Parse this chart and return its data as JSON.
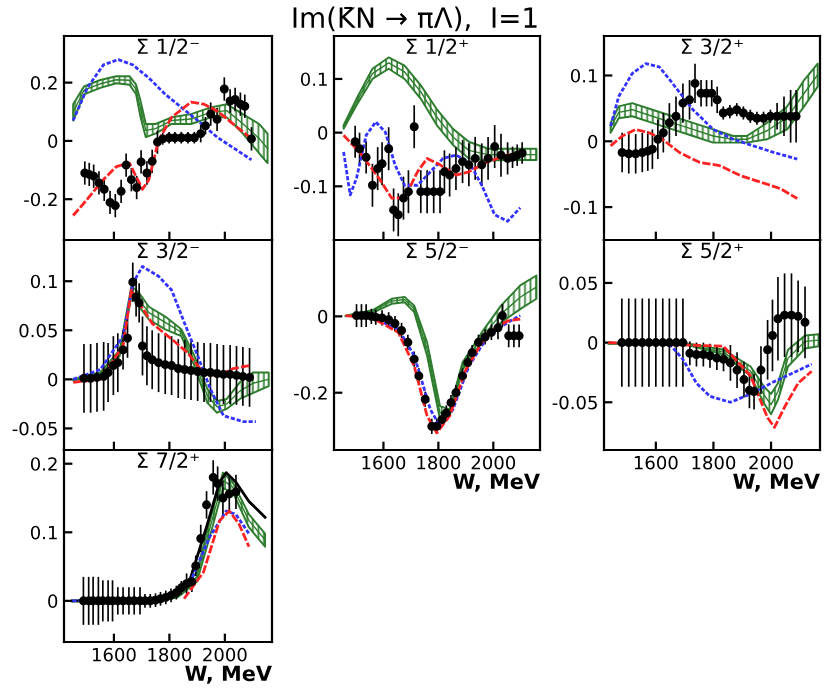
{
  "chart_data": [
    {
      "type": "other",
      "title": "Im(K̄N → πΛ),  I=1"
    },
    {
      "type": "line",
      "title": "Σ 1/2⁻",
      "xlim": [
        1420,
        2170
      ],
      "ylim": [
        -0.34,
        0.36
      ],
      "xticks": [
        1600,
        1800,
        2000
      ],
      "yticks": [
        -0.2,
        0,
        0.2
      ],
      "tick_labels": "y",
      "series": [
        {
          "type": "line",
          "color": "#2e7d2e",
          "x": [
            1453,
            1492,
            1551,
            1609,
            1656,
            1680,
            1696,
            1715,
            1750,
            1808,
            1878,
            1949,
            2007,
            2065,
            2124,
            2154
          ],
          "values": [
            0.098,
            0.174,
            0.196,
            0.21,
            0.208,
            0.177,
            0.109,
            0.036,
            0.042,
            0.07,
            0.075,
            0.098,
            0.104,
            0.059,
            0.008,
            -0.026
          ],
          "lower": [
            0.07,
            0.16,
            0.182,
            0.198,
            0.193,
            0.16,
            0.081,
            0.013,
            0.025,
            0.058,
            0.058,
            0.081,
            0.081,
            0.025,
            -0.043,
            -0.076
          ],
          "upper": [
            0.126,
            0.187,
            0.209,
            0.222,
            0.222,
            0.193,
            0.137,
            0.058,
            0.058,
            0.081,
            0.092,
            0.115,
            0.126,
            0.092,
            0.058,
            0.025
          ]
        },
        {
          "type": "line",
          "color": "#3333ff",
          "line_style": "dotted",
          "x": [
            1453,
            1504,
            1562,
            1616,
            1668,
            1726,
            1785,
            1843,
            1902,
            1972,
            2042,
            2096
          ],
          "values": [
            0.07,
            0.182,
            0.261,
            0.279,
            0.261,
            0.216,
            0.16,
            0.115,
            0.07,
            0.013,
            -0.031,
            -0.065
          ]
        },
        {
          "type": "line",
          "color": "#ff2222",
          "line_style": "dashed",
          "x": [
            1453,
            1504,
            1562,
            1609,
            1656,
            1703,
            1726,
            1761,
            1808,
            1878,
            1925,
            1972,
            2030,
            2089
          ],
          "values": [
            -0.256,
            -0.2,
            -0.133,
            -0.088,
            -0.076,
            -0.166,
            -0.133,
            0.002,
            0.081,
            0.133,
            0.126,
            0.103,
            0.058,
            0.013
          ]
        },
        {
          "type": "scatter",
          "color": "#000000",
          "marker": "circle",
          "x": [
            1495,
            1511,
            1527,
            1546,
            1565,
            1586,
            1605,
            1626,
            1644,
            1663,
            1682,
            1698,
            1719,
            1738,
            1757,
            1776,
            1799,
            1820,
            1843,
            1867,
            1890,
            1913,
            1930,
            1949,
            1972,
            1998,
            2019,
            2037,
            2056,
            2072,
            2096
          ],
          "values": [
            -0.11,
            -0.115,
            -0.121,
            -0.144,
            -0.166,
            -0.211,
            -0.222,
            -0.173,
            -0.083,
            -0.133,
            -0.16,
            -0.072,
            -0.11,
            -0.07,
            -0.004,
            0.007,
            0.011,
            0.011,
            0.011,
            0.011,
            0.011,
            0.025,
            0.052,
            0.092,
            0.074,
            0.178,
            0.137,
            0.142,
            0.126,
            0.119,
            0.007
          ],
          "errors": [
            0.04,
            0.04,
            0.04,
            0.04,
            0.04,
            0.04,
            0.04,
            0.04,
            0.04,
            0.04,
            0.04,
            0.04,
            0.04,
            0.04,
            0.04,
            0.02,
            0.02,
            0.02,
            0.02,
            0.02,
            0.02,
            0.03,
            0.03,
            0.04,
            0.04,
            0.04,
            0.04,
            0.04,
            0.04,
            0.04,
            0.04
          ]
        }
      ]
    },
    {
      "type": "line",
      "title": "Σ 1/2⁺",
      "xlim": [
        1420,
        2170
      ],
      "ylim": [
        -0.2,
        0.18
      ],
      "xticks": [
        1600,
        1800,
        2000
      ],
      "yticks": [
        -0.1,
        0,
        0.1
      ],
      "tick_labels": "y",
      "series": [
        {
          "type": "line",
          "color": "#2e7d2e",
          "x": [
            1455,
            1502,
            1560,
            1619,
            1677,
            1736,
            1794,
            1853,
            1911,
            1981,
            2052,
            2122,
            2157
          ],
          "values": [
            0.011,
            0.057,
            0.11,
            0.13,
            0.113,
            0.076,
            0.029,
            -0.008,
            -0.033,
            -0.041,
            -0.041,
            -0.041,
            -0.041
          ],
          "lower": [
            0.007,
            0.051,
            0.1,
            0.119,
            0.1,
            0.063,
            0.014,
            -0.023,
            -0.048,
            -0.052,
            -0.051,
            -0.051,
            -0.051
          ],
          "upper": [
            0.014,
            0.063,
            0.119,
            0.14,
            0.125,
            0.088,
            0.044,
            0.007,
            -0.017,
            -0.03,
            -0.03,
            -0.03,
            -0.03
          ]
        },
        {
          "type": "line",
          "color": "#3333ff",
          "line_style": "dotted",
          "x": [
            1455,
            1479,
            1502,
            1537,
            1572,
            1607,
            1642,
            1677,
            1724,
            1771,
            1817,
            1864,
            1911,
            1958,
            2005,
            2052,
            2098
          ],
          "values": [
            -0.036,
            -0.116,
            -0.085,
            -0.005,
            0.02,
            0.001,
            -0.06,
            -0.098,
            -0.098,
            -0.073,
            -0.048,
            -0.042,
            -0.054,
            -0.098,
            -0.153,
            -0.165,
            -0.14
          ]
        },
        {
          "type": "line",
          "color": "#ff2222",
          "line_style": "dashed",
          "x": [
            1455,
            1513,
            1584,
            1630,
            1677,
            1724,
            1759,
            1806,
            1864,
            1911,
            1981,
            2052,
            2098
          ],
          "values": [
            -0.005,
            -0.036,
            -0.085,
            -0.122,
            -0.122,
            -0.073,
            -0.048,
            -0.06,
            -0.079,
            -0.073,
            -0.054,
            -0.042,
            -0.038
          ]
        },
        {
          "type": "scatter",
          "color": "#000000",
          "marker": "circle",
          "x": [
            1497,
            1513,
            1537,
            1560,
            1579,
            1595,
            1619,
            1637,
            1654,
            1673,
            1691,
            1712,
            1736,
            1759,
            1783,
            1806,
            1822,
            1841,
            1864,
            1888,
            1911,
            1934,
            1958,
            1981,
            2005,
            2028,
            2052,
            2070,
            2087,
            2105
          ],
          "values": [
            -0.017,
            -0.03,
            -0.046,
            -0.098,
            -0.067,
            -0.058,
            -0.03,
            -0.144,
            -0.153,
            -0.122,
            -0.11,
            0.011,
            -0.11,
            -0.11,
            -0.11,
            -0.11,
            -0.073,
            -0.079,
            -0.067,
            -0.054,
            -0.06,
            -0.048,
            -0.06,
            -0.048,
            -0.026,
            -0.042,
            -0.048,
            -0.046,
            -0.042,
            -0.038
          ],
          "errors": [
            0.03,
            0.03,
            0.03,
            0.04,
            0.04,
            0.04,
            0.04,
            0.04,
            0.04,
            0.04,
            0.04,
            0.04,
            0.04,
            0.04,
            0.04,
            0.04,
            0.04,
            0.04,
            0.04,
            0.04,
            0.04,
            0.04,
            0.04,
            0.04,
            0.04,
            0.04,
            0.03,
            0.02,
            0.02,
            0.02
          ]
        }
      ]
    },
    {
      "type": "line",
      "title": "Σ 3/2⁺",
      "xlim": [
        1420,
        2170
      ],
      "ylim": [
        -0.15,
        0.16
      ],
      "xticks": [
        1600,
        1800,
        2000
      ],
      "yticks": [
        -0.1,
        0,
        0.1
      ],
      "tick_labels": "y",
      "series": [
        {
          "type": "line",
          "color": "#2e7d2e",
          "x": [
            1443,
            1471,
            1518,
            1588,
            1658,
            1729,
            1799,
            1869,
            1916,
            1986,
            2056,
            2115,
            2162
          ],
          "values": [
            0.021,
            0.044,
            0.048,
            0.038,
            0.028,
            0.018,
            0.008,
            0.003,
            0.003,
            0.016,
            0.036,
            0.073,
            0.101
          ],
          "lower": [
            0.013,
            0.035,
            0.038,
            0.028,
            0.018,
            0.008,
            -0.002,
            -0.002,
            -0.002,
            0.003,
            0.018,
            0.053,
            0.083
          ],
          "upper": [
            0.028,
            0.053,
            0.058,
            0.048,
            0.038,
            0.028,
            0.018,
            0.008,
            0.008,
            0.028,
            0.053,
            0.093,
            0.118
          ]
        },
        {
          "type": "line",
          "color": "#3333ff",
          "line_style": "dotted",
          "x": [
            1443,
            1471,
            1518,
            1565,
            1612,
            1658,
            1729,
            1799,
            1869,
            1939,
            2010,
            2091
          ],
          "values": [
            0.023,
            0.068,
            0.103,
            0.118,
            0.113,
            0.088,
            0.048,
            0.018,
            0.003,
            -0.007,
            -0.017,
            -0.027
          ]
        },
        {
          "type": "line",
          "color": "#ff2222",
          "line_style": "dashed",
          "x": [
            1443,
            1483,
            1530,
            1577,
            1623,
            1682,
            1752,
            1822,
            1893,
            1963,
            2033,
            2091
          ],
          "values": [
            -0.007,
            0.008,
            0.018,
            0.013,
            0.003,
            -0.017,
            -0.032,
            -0.037,
            -0.052,
            -0.062,
            -0.072,
            -0.087
          ]
        },
        {
          "type": "scatter",
          "color": "#000000",
          "marker": "circle",
          "x": [
            1483,
            1506,
            1530,
            1553,
            1572,
            1588,
            1607,
            1626,
            1647,
            1670,
            1694,
            1717,
            1736,
            1757,
            1776,
            1794,
            1813,
            1834,
            1857,
            1881,
            1904,
            1928,
            1951,
            1974,
            1998,
            2021,
            2045,
            2068,
            2087
          ],
          "values": [
            -0.017,
            -0.019,
            -0.019,
            -0.017,
            -0.015,
            -0.012,
            0.003,
            0.013,
            0.028,
            0.038,
            0.058,
            0.063,
            0.088,
            0.073,
            0.073,
            0.073,
            0.063,
            0.043,
            0.045,
            0.048,
            0.043,
            0.038,
            0.035,
            0.035,
            0.038,
            0.038,
            0.038,
            0.038,
            0.038
          ],
          "errors": [
            0.03,
            0.03,
            0.03,
            0.03,
            0.03,
            0.03,
            0.03,
            0.03,
            0.03,
            0.03,
            0.03,
            0.03,
            0.03,
            0.02,
            0.02,
            0.02,
            0.02,
            0.01,
            0.01,
            0.01,
            0.01,
            0.01,
            0.01,
            0.01,
            0.01,
            0.02,
            0.03,
            0.04,
            0.04
          ]
        }
      ]
    },
    {
      "type": "line",
      "title": "Σ 3/2⁻",
      "xlim": [
        1420,
        2170
      ],
      "ylim": [
        -0.072,
        0.142
      ],
      "xticks": [
        1600,
        1800,
        2000
      ],
      "yticks": [
        -0.05,
        0,
        0.05,
        0.1
      ],
      "tick_labels": "y",
      "series": [
        {
          "type": "line",
          "color": "#2e7d2e",
          "x": [
            1453,
            1551,
            1621,
            1663,
            1691,
            1726,
            1785,
            1843,
            1890,
            1937,
            1972,
            2007,
            2054,
            2101,
            2158
          ],
          "values": [
            -0.001,
            0.005,
            0.027,
            0.09,
            0.081,
            0.068,
            0.058,
            0.048,
            0.019,
            -0.017,
            -0.028,
            -0.025,
            -0.012,
            -0.004,
            0
          ],
          "lower": [
            -0.001,
            0.003,
            0.024,
            0.084,
            0.074,
            0.061,
            0.051,
            0.044,
            0.014,
            -0.024,
            -0.034,
            -0.03,
            -0.02,
            -0.014,
            -0.007
          ],
          "upper": [
            0,
            0.007,
            0.03,
            0.095,
            0.088,
            0.074,
            0.064,
            0.051,
            0.024,
            -0.01,
            -0.022,
            -0.02,
            -0.003,
            0.007,
            0.007
          ]
        },
        {
          "type": "line",
          "color": "#3333ff",
          "line_style": "dotted",
          "x": [
            1453,
            1551,
            1633,
            1668,
            1703,
            1761,
            1808,
            1855,
            1902,
            1948,
            1995,
            2065,
            2112
          ],
          "values": [
            0,
            0.01,
            0.044,
            0.098,
            0.115,
            0.105,
            0.091,
            0.057,
            0.024,
            -0.01,
            -0.037,
            -0.043,
            -0.043
          ]
        },
        {
          "type": "line",
          "color": "#ff2222",
          "line_style": "dashed",
          "x": [
            1453,
            1551,
            1633,
            1663,
            1691,
            1738,
            1808,
            1866,
            1913,
            1972,
            2030,
            2089
          ],
          "values": [
            -0.003,
            0,
            0.034,
            0.091,
            0.078,
            0.057,
            0.041,
            0.027,
            0.01,
            0.003,
            0.011,
            0.014
          ]
        },
        {
          "type": "scatter",
          "color": "#000000",
          "marker": "circle",
          "x": [
            1492,
            1516,
            1539,
            1563,
            1579,
            1598,
            1614,
            1633,
            1649,
            1668,
            1680,
            1691,
            1703,
            1719,
            1738,
            1761,
            1785,
            1808,
            1832,
            1855,
            1878,
            1902,
            1925,
            1948,
            1972,
            1995,
            2019,
            2042,
            2065,
            2089
          ],
          "values": [
            0.001,
            0.001,
            0.002,
            0.003,
            0.007,
            0.014,
            0.017,
            0.03,
            0.042,
            0.099,
            0.084,
            0.078,
            0.034,
            0.024,
            0.02,
            0.017,
            0.015,
            0.014,
            0.011,
            0.01,
            0.009,
            0.008,
            0.007,
            0.007,
            0.006,
            0.005,
            0.005,
            0.004,
            0.003,
            0.002
          ],
          "errors": [
            0.035,
            0.035,
            0.035,
            0.035,
            0.03,
            0.03,
            0.03,
            0.02,
            0.02,
            0.02,
            0.02,
            0.02,
            0.03,
            0.03,
            0.03,
            0.03,
            0.03,
            0.03,
            0.03,
            0.03,
            0.03,
            0.03,
            0.03,
            0.03,
            0.03,
            0.03,
            0.03,
            0.03,
            0.03,
            0.03
          ]
        }
      ]
    },
    {
      "type": "line",
      "title": "Σ 5/2⁻",
      "xlim": [
        1420,
        2170
      ],
      "ylim": [
        -0.35,
        0.2
      ],
      "xticks": [
        1600,
        1800,
        2000
      ],
      "yticks": [
        -0.2,
        0
      ],
      "xlabel": "W, MeV",
      "series": [
        {
          "type": "line",
          "color": "#2e7d2e",
          "x": [
            1462,
            1560,
            1630,
            1677,
            1712,
            1759,
            1806,
            1841,
            1888,
            1958,
            2028,
            2098,
            2157
          ],
          "values": [
            0.001,
            0.013,
            0.04,
            0.044,
            0.02,
            -0.086,
            -0.253,
            -0.253,
            -0.13,
            -0.055,
            0.006,
            0.05,
            0.077
          ],
          "lower": [
            0,
            0.009,
            0.033,
            0.037,
            0.011,
            -0.103,
            -0.27,
            -0.261,
            -0.139,
            -0.068,
            -0.016,
            0.019,
            0.046
          ],
          "upper": [
            0.002,
            0.016,
            0.046,
            0.051,
            0.028,
            -0.068,
            -0.235,
            -0.244,
            -0.121,
            -0.042,
            0.028,
            0.081,
            0.107
          ]
        },
        {
          "type": "line",
          "color": "#3333ff",
          "line_style": "dotted",
          "x": [
            1560,
            1654,
            1712,
            1771,
            1806,
            1853,
            1911,
            1981,
            2052,
            2098
          ],
          "values": [
            -0.004,
            -0.033,
            -0.103,
            -0.244,
            -0.288,
            -0.244,
            -0.13,
            -0.051,
            -0.016,
            0.002
          ]
        },
        {
          "type": "line",
          "color": "#ff2222",
          "line_style": "dashed",
          "x": [
            1462,
            1560,
            1654,
            1712,
            1759,
            1794,
            1841,
            1900,
            1981,
            2052,
            2098
          ],
          "values": [
            0.002,
            -0.004,
            -0.042,
            -0.13,
            -0.261,
            -0.305,
            -0.261,
            -0.139,
            -0.042,
            -0.012,
            -0.007
          ]
        },
        {
          "type": "scatter",
          "color": "#000000",
          "marker": "circle",
          "x": [
            1502,
            1520,
            1537,
            1556,
            1572,
            1595,
            1619,
            1642,
            1666,
            1689,
            1712,
            1729,
            1752,
            1776,
            1794,
            1813,
            1829,
            1846,
            1864,
            1888,
            1907,
            1923,
            1946,
            1970,
            1993,
            2017,
            2033,
            2056,
            2075,
            2094
          ],
          "values": [
            0.002,
            0.002,
            0.002,
            0,
            -0.002,
            -0.004,
            -0.009,
            -0.019,
            -0.037,
            -0.068,
            -0.112,
            -0.156,
            -0.217,
            -0.288,
            -0.288,
            -0.27,
            -0.253,
            -0.226,
            -0.2,
            -0.156,
            -0.121,
            -0.095,
            -0.068,
            -0.054,
            -0.042,
            -0.03,
            0.002,
            -0.051,
            -0.051,
            -0.051
          ],
          "errors": [
            0.03,
            0.03,
            0.03,
            0.02,
            0.02,
            0.02,
            0.02,
            0.02,
            0.02,
            0.02,
            0.02,
            0.02,
            0.02,
            0.02,
            0.02,
            0.02,
            0.02,
            0.02,
            0.02,
            0.02,
            0.02,
            0.02,
            0.02,
            0.02,
            0.02,
            0.03,
            0.03,
            0.03,
            0.03,
            0.03
          ]
        }
      ]
    },
    {
      "type": "line",
      "title": "Σ 5/2⁺",
      "xlim": [
        1420,
        2170
      ],
      "ylim": [
        -0.09,
        0.086
      ],
      "xticks": [
        1600,
        1800,
        2000
      ],
      "yticks": [
        -0.05,
        0,
        0.05
      ],
      "xlabel": "W, MeV",
      "series": [
        {
          "type": "line",
          "color": "#2e7d2e",
          "x": [
            1435,
            1694,
            1835,
            1929,
            1976,
            2000,
            2024,
            2059,
            2118,
            2165
          ],
          "values": [
            -0.001,
            -0.001,
            -0.008,
            -0.024,
            -0.044,
            -0.052,
            -0.041,
            -0.013,
            0.001,
            0.002
          ],
          "lower": [
            -0.001,
            -0.001,
            -0.01,
            -0.028,
            -0.051,
            -0.06,
            -0.048,
            -0.02,
            -0.005,
            -0.003
          ],
          "upper": [
            0,
            0,
            -0.006,
            -0.02,
            -0.037,
            -0.043,
            -0.034,
            -0.006,
            0.006,
            0.007
          ]
        },
        {
          "type": "line",
          "color": "#3333ff",
          "line_style": "dotted",
          "x": [
            1647,
            1694,
            1741,
            1788,
            1859,
            1929,
            2000,
            2071,
            2141
          ],
          "values": [
            -0.001,
            -0.014,
            -0.034,
            -0.045,
            -0.05,
            -0.043,
            -0.034,
            -0.026,
            -0.018
          ]
        },
        {
          "type": "line",
          "color": "#ff2222",
          "line_style": "dashed",
          "x": [
            1435,
            1835,
            1929,
            1988,
            2012,
            2047,
            2094,
            2141
          ],
          "values": [
            0,
            -0.003,
            -0.028,
            -0.063,
            -0.071,
            -0.054,
            -0.034,
            -0.024
          ]
        },
        {
          "type": "scatter",
          "color": "#000000",
          "marker": "circle",
          "x": [
            1482,
            1506,
            1529,
            1553,
            1576,
            1600,
            1624,
            1647,
            1671,
            1694,
            1718,
            1741,
            1765,
            1788,
            1812,
            1835,
            1859,
            1882,
            1906,
            1925,
            1941,
            1965,
            1988,
            2005,
            2024,
            2047,
            2071,
            2094,
            2118
          ],
          "values": [
            0,
            0,
            0,
            0,
            0,
            0,
            0,
            0,
            0,
            0,
            -0.009,
            -0.01,
            -0.01,
            -0.011,
            -0.013,
            -0.014,
            -0.017,
            -0.023,
            -0.031,
            -0.04,
            -0.041,
            -0.023,
            -0.006,
            0.006,
            0.02,
            0.023,
            0.023,
            0.022,
            0.017
          ],
          "errors": [
            0.037,
            0.037,
            0.037,
            0.037,
            0.037,
            0.037,
            0.037,
            0.037,
            0.037,
            0.037,
            0.01,
            0.01,
            0.01,
            0.01,
            0.01,
            0.01,
            0.015,
            0.015,
            0.015,
            0.015,
            0.015,
            0.02,
            0.025,
            0.03,
            0.035,
            0.035,
            0.035,
            0.03,
            0.03
          ]
        }
      ]
    },
    {
      "type": "line",
      "title": "Σ 7/2⁺",
      "xlim": [
        1420,
        2170
      ],
      "ylim": [
        -0.06,
        0.22
      ],
      "xticks": [
        1600,
        1800,
        2000
      ],
      "yticks": [
        0,
        0.1,
        0.2
      ],
      "xlabel": "W, MeV",
      "series": [
        {
          "type": "line",
          "color": "#2e7d2e",
          "x": [
            1450,
            1736,
            1829,
            1899,
            1946,
            1993,
            2028,
            2087,
            2145
          ],
          "values": [
            null,
            null,
            0.007,
            0.035,
            0.106,
            0.176,
            0.166,
            0.117,
            0.089
          ],
          "lower": [
            -0.001,
            0,
            0.005,
            0.028,
            0.094,
            0.164,
            0.159,
            0.107,
            0.079
          ],
          "upper": [
            0,
            0.001,
            0.009,
            0.042,
            0.117,
            0.187,
            0.173,
            0.126,
            0.098
          ]
        },
        {
          "type": "line",
          "color": "#000000",
          "line_style": "solid",
          "x": [
            1450,
            1783,
            1876,
            1934,
            1981,
            2005,
            2040,
            2087,
            2145
          ],
          "values": [
            0,
            0.003,
            0.033,
            0.108,
            0.173,
            0.187,
            0.173,
            0.145,
            0.122
          ]
        },
        {
          "type": "line",
          "color": "#3333ff",
          "line_style": "dotted",
          "x": [
            1450,
            1806,
            1876,
            1946,
            2005,
            2040,
            2087
          ],
          "values": [
            0,
            0.005,
            0.028,
            0.094,
            0.131,
            0.126,
            0.098
          ]
        },
        {
          "type": "line",
          "color": "#ff2222",
          "line_style": "dashed",
          "x": [
            1853,
            1923,
            1981,
            2016,
            2051,
            2087
          ],
          "values": [
            0.003,
            0.042,
            0.117,
            0.131,
            0.112,
            0.079
          ]
        },
        {
          "type": "scatter",
          "color": "#000000",
          "marker": "circle",
          "x": [
            1490,
            1509,
            1525,
            1544,
            1560,
            1579,
            1595,
            1614,
            1633,
            1654,
            1673,
            1694,
            1712,
            1731,
            1750,
            1768,
            1787,
            1806,
            1825,
            1843,
            1862,
            1881,
            1895,
            1913,
            1934,
            1958,
            1974,
            1993,
            2016,
            2040
          ],
          "values": [
            0,
            0,
            0,
            0,
            0,
            0,
            0,
            0,
            0,
            0,
            0,
            0,
            0,
            0,
            0.001,
            0.003,
            0.005,
            0.008,
            0.012,
            0.019,
            0.025,
            0.028,
            0.051,
            0.091,
            0.14,
            0.18,
            0.171,
            0.15,
            0.156,
            0.159
          ],
          "errors": [
            0.035,
            0.035,
            0.035,
            0.035,
            0.03,
            0.03,
            0.03,
            0.02,
            0.02,
            0.02,
            0.02,
            0.02,
            0.01,
            0.01,
            0.01,
            0.01,
            0.01,
            0.01,
            0.01,
            0.01,
            0.015,
            0.015,
            0.015,
            0.02,
            0.02,
            0.025,
            0.025,
            0.025,
            0.025,
            0.025
          ]
        }
      ]
    }
  ]
}
